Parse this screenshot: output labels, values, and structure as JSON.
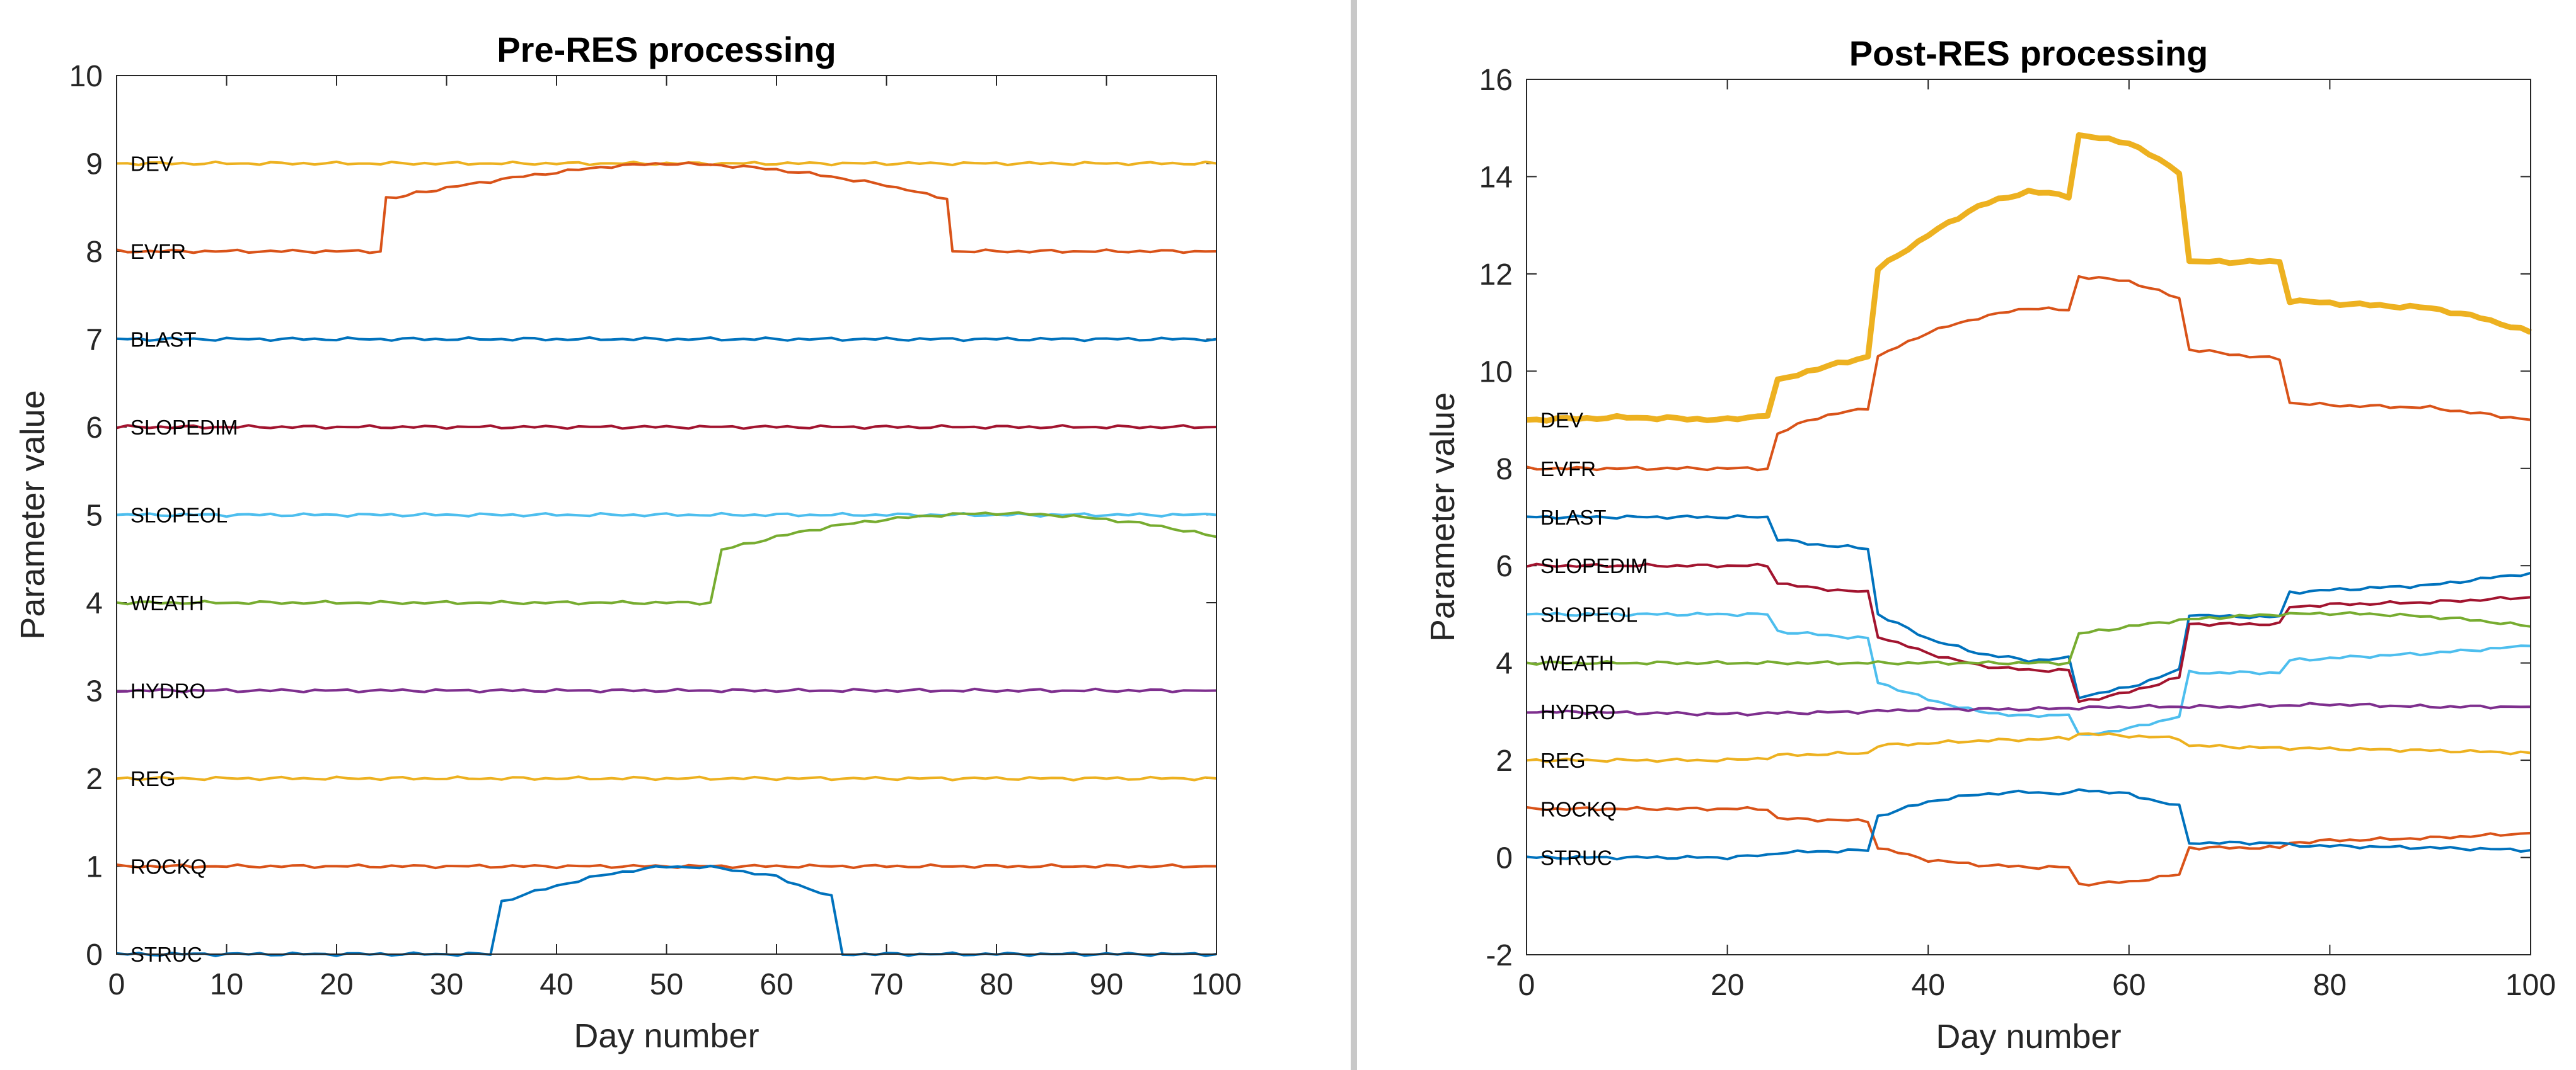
{
  "chart_data": [
    {
      "type": "line",
      "title": "Pre-RES processing",
      "xlabel": "Day number",
      "ylabel": "Parameter value",
      "xlim": [
        0,
        100
      ],
      "ylim": [
        0,
        10
      ],
      "xticks": [
        0,
        10,
        20,
        30,
        40,
        50,
        60,
        70,
        80,
        90,
        100
      ],
      "yticks": [
        0,
        1,
        2,
        3,
        4,
        5,
        6,
        7,
        8,
        9,
        10
      ],
      "grid": false,
      "series": [
        {
          "name": "DEV",
          "color": "#EDB120",
          "width": 2,
          "points": [
            [
              0,
              9
            ],
            [
              100,
              9
            ]
          ]
        },
        {
          "name": "EVFR",
          "color": "#D95319",
          "width": 2,
          "points": [
            [
              0,
              8.0
            ],
            [
              24,
              8.0
            ],
            [
              24.5,
              8.6
            ],
            [
              30,
              8.72
            ],
            [
              35,
              8.82
            ],
            [
              40,
              8.9
            ],
            [
              45,
              8.97
            ],
            [
              50,
              9.0
            ],
            [
              55,
              8.98
            ],
            [
              60,
              8.93
            ],
            [
              65,
              8.85
            ],
            [
              70,
              8.75
            ],
            [
              75.5,
              8.6
            ],
            [
              76,
              8.0
            ],
            [
              100,
              8.0
            ]
          ]
        },
        {
          "name": "BLAST",
          "color": "#0072BD",
          "width": 2,
          "points": [
            [
              0,
              7.0
            ],
            [
              100,
              7.0
            ]
          ]
        },
        {
          "name": "SLOPEDIM",
          "color": "#A2142F",
          "width": 2,
          "points": [
            [
              0,
              6.0
            ],
            [
              100,
              6.0
            ]
          ]
        },
        {
          "name": "SLOPEOL",
          "color": "#4DBEEE",
          "width": 2,
          "points": [
            [
              0,
              5.0
            ],
            [
              100,
              5.0
            ]
          ]
        },
        {
          "name": "WEATH",
          "color": "#77AC30",
          "width": 2,
          "points": [
            [
              0,
              4.0
            ],
            [
              54,
              4.0
            ],
            [
              55,
              4.6
            ],
            [
              60,
              4.75
            ],
            [
              65,
              4.87
            ],
            [
              70,
              4.95
            ],
            [
              75,
              5.0
            ],
            [
              80,
              5.02
            ],
            [
              85,
              5.0
            ],
            [
              90,
              4.95
            ],
            [
              95,
              4.87
            ],
            [
              100,
              4.75
            ]
          ]
        },
        {
          "name": "HYDRO",
          "color": "#7E2F8E",
          "width": 2,
          "points": [
            [
              0,
              3.0
            ],
            [
              100,
              3.0
            ]
          ]
        },
        {
          "name": "REG",
          "color": "#EDB120",
          "width": 2,
          "points": [
            [
              0,
              2.0
            ],
            [
              100,
              2.0
            ]
          ]
        },
        {
          "name": "ROCKQ",
          "color": "#D95319",
          "width": 2,
          "points": [
            [
              0,
              1.0
            ],
            [
              100,
              1.0
            ]
          ]
        },
        {
          "name": "STRUC",
          "color": "#0072BD",
          "width": 2,
          "points": [
            [
              0,
              0.0
            ],
            [
              34,
              0.0
            ],
            [
              35,
              0.6
            ],
            [
              40,
              0.78
            ],
            [
              45,
              0.92
            ],
            [
              50,
              1.0
            ],
            [
              55,
              0.98
            ],
            [
              60,
              0.88
            ],
            [
              65,
              0.65
            ],
            [
              66,
              0.0
            ],
            [
              100,
              0.0
            ]
          ]
        }
      ]
    },
    {
      "type": "line",
      "title": "Post-RES processing",
      "xlabel": "Day number",
      "ylabel": "Parameter value",
      "xlim": [
        0,
        100
      ],
      "ylim": [
        -2,
        16
      ],
      "xticks": [
        0,
        20,
        40,
        60,
        80,
        100
      ],
      "yticks": [
        -2,
        0,
        2,
        4,
        6,
        8,
        10,
        12,
        14,
        16
      ],
      "grid": false,
      "series": [
        {
          "name": "DEV",
          "color": "#EDB120",
          "width": 4.5,
          "points": [
            [
              0,
              9.0
            ],
            [
              10,
              9.05
            ],
            [
              20,
              9.0
            ],
            [
              24,
              9.1
            ],
            [
              25,
              9.8
            ],
            [
              28,
              10.0
            ],
            [
              30,
              10.1
            ],
            [
              34,
              10.3
            ],
            [
              35,
              12.1
            ],
            [
              40,
              12.8
            ],
            [
              45,
              13.4
            ],
            [
              50,
              13.7
            ],
            [
              54,
              13.6
            ],
            [
              55,
              14.85
            ],
            [
              60,
              14.7
            ],
            [
              65,
              14.1
            ],
            [
              66,
              12.25
            ],
            [
              70,
              12.25
            ],
            [
              75,
              12.25
            ],
            [
              76,
              11.45
            ],
            [
              80,
              11.4
            ],
            [
              85,
              11.35
            ],
            [
              90,
              11.3
            ],
            [
              95,
              11.1
            ],
            [
              100,
              10.8
            ]
          ]
        },
        {
          "name": "EVFR",
          "color": "#D95319",
          "width": 2,
          "points": [
            [
              0,
              8.0
            ],
            [
              24,
              8.0
            ],
            [
              25,
              8.7
            ],
            [
              28,
              9.0
            ],
            [
              34,
              9.25
            ],
            [
              35,
              10.3
            ],
            [
              40,
              10.8
            ],
            [
              45,
              11.1
            ],
            [
              50,
              11.3
            ],
            [
              54,
              11.25
            ],
            [
              55,
              11.95
            ],
            [
              60,
              11.85
            ],
            [
              65,
              11.5
            ],
            [
              66,
              10.45
            ],
            [
              70,
              10.35
            ],
            [
              75,
              10.25
            ],
            [
              76,
              9.35
            ],
            [
              80,
              9.3
            ],
            [
              90,
              9.25
            ],
            [
              100,
              9.0
            ]
          ]
        },
        {
          "name": "BLAST",
          "color": "#0072BD",
          "width": 2,
          "points": [
            [
              0,
              7.0
            ],
            [
              24,
              7.0
            ],
            [
              25,
              6.55
            ],
            [
              28,
              6.45
            ],
            [
              34,
              6.35
            ],
            [
              35,
              5.0
            ],
            [
              40,
              4.5
            ],
            [
              45,
              4.2
            ],
            [
              50,
              4.05
            ],
            [
              54,
              4.1
            ],
            [
              55,
              3.3
            ],
            [
              60,
              3.5
            ],
            [
              65,
              3.85
            ],
            [
              66,
              5.0
            ],
            [
              70,
              4.95
            ],
            [
              75,
              4.95
            ],
            [
              76,
              5.45
            ],
            [
              80,
              5.5
            ],
            [
              90,
              5.6
            ],
            [
              100,
              5.85
            ]
          ]
        },
        {
          "name": "SLOPEDIM",
          "color": "#A2142F",
          "width": 2,
          "points": [
            [
              0,
              6.0
            ],
            [
              24,
              6.0
            ],
            [
              25,
              5.65
            ],
            [
              28,
              5.55
            ],
            [
              34,
              5.45
            ],
            [
              35,
              4.55
            ],
            [
              40,
              4.2
            ],
            [
              45,
              3.95
            ],
            [
              50,
              3.85
            ],
            [
              54,
              3.85
            ],
            [
              55,
              3.2
            ],
            [
              60,
              3.4
            ],
            [
              65,
              3.7
            ],
            [
              66,
              4.8
            ],
            [
              70,
              4.8
            ],
            [
              75,
              4.8
            ],
            [
              76,
              5.15
            ],
            [
              80,
              5.2
            ],
            [
              90,
              5.25
            ],
            [
              100,
              5.35
            ]
          ]
        },
        {
          "name": "SLOPEOL",
          "color": "#4DBEEE",
          "width": 2,
          "points": [
            [
              0,
              5.0
            ],
            [
              24,
              5.0
            ],
            [
              25,
              4.65
            ],
            [
              28,
              4.6
            ],
            [
              34,
              4.5
            ],
            [
              35,
              3.6
            ],
            [
              40,
              3.25
            ],
            [
              45,
              3.0
            ],
            [
              50,
              2.9
            ],
            [
              54,
              2.95
            ],
            [
              55,
              2.5
            ],
            [
              60,
              2.65
            ],
            [
              65,
              2.9
            ],
            [
              66,
              3.8
            ],
            [
              70,
              3.8
            ],
            [
              75,
              3.8
            ],
            [
              76,
              4.05
            ],
            [
              80,
              4.1
            ],
            [
              90,
              4.2
            ],
            [
              100,
              4.35
            ]
          ]
        },
        {
          "name": "WEATH",
          "color": "#77AC30",
          "width": 2,
          "points": [
            [
              0,
              4.0
            ],
            [
              54,
              4.0
            ],
            [
              55,
              4.6
            ],
            [
              60,
              4.75
            ],
            [
              65,
              4.88
            ],
            [
              70,
              4.95
            ],
            [
              75,
              5.0
            ],
            [
              80,
              5.02
            ],
            [
              85,
              5.0
            ],
            [
              90,
              4.95
            ],
            [
              95,
              4.87
            ],
            [
              100,
              4.75
            ]
          ]
        },
        {
          "name": "HYDRO",
          "color": "#7E2F8E",
          "width": 2,
          "points": [
            [
              0,
              3.0
            ],
            [
              20,
              2.95
            ],
            [
              34,
              3.0
            ],
            [
              40,
              3.05
            ],
            [
              50,
              3.05
            ],
            [
              60,
              3.1
            ],
            [
              70,
              3.1
            ],
            [
              80,
              3.15
            ],
            [
              90,
              3.1
            ],
            [
              100,
              3.1
            ]
          ]
        },
        {
          "name": "REG",
          "color": "#EDB120",
          "width": 2,
          "points": [
            [
              0,
              2.0
            ],
            [
              20,
              2.0
            ],
            [
              24,
              2.05
            ],
            [
              25,
              2.1
            ],
            [
              34,
              2.15
            ],
            [
              35,
              2.3
            ],
            [
              45,
              2.4
            ],
            [
              54,
              2.45
            ],
            [
              55,
              2.55
            ],
            [
              60,
              2.5
            ],
            [
              65,
              2.45
            ],
            [
              66,
              2.3
            ],
            [
              75,
              2.25
            ],
            [
              76,
              2.25
            ],
            [
              90,
              2.2
            ],
            [
              100,
              2.15
            ]
          ]
        },
        {
          "name": "ROCKQ",
          "color": "#D95319",
          "width": 2,
          "points": [
            [
              0,
              1.0
            ],
            [
              24,
              1.0
            ],
            [
              25,
              0.8
            ],
            [
              34,
              0.75
            ],
            [
              35,
              0.2
            ],
            [
              40,
              -0.05
            ],
            [
              45,
              -0.15
            ],
            [
              50,
              -0.2
            ],
            [
              54,
              -0.2
            ],
            [
              55,
              -0.55
            ],
            [
              60,
              -0.5
            ],
            [
              65,
              -0.35
            ],
            [
              66,
              0.2
            ],
            [
              75,
              0.2
            ],
            [
              76,
              0.3
            ],
            [
              80,
              0.35
            ],
            [
              90,
              0.4
            ],
            [
              100,
              0.5
            ]
          ]
        },
        {
          "name": "STRUC",
          "color": "#0072BD",
          "width": 2,
          "points": [
            [
              0,
              0.0
            ],
            [
              20,
              0.0
            ],
            [
              24,
              0.05
            ],
            [
              25,
              0.1
            ],
            [
              34,
              0.15
            ],
            [
              35,
              0.85
            ],
            [
              40,
              1.15
            ],
            [
              45,
              1.3
            ],
            [
              50,
              1.35
            ],
            [
              54,
              1.3
            ],
            [
              55,
              1.4
            ],
            [
              60,
              1.3
            ],
            [
              65,
              1.05
            ],
            [
              66,
              0.3
            ],
            [
              70,
              0.3
            ],
            [
              75,
              0.3
            ],
            [
              76,
              0.25
            ],
            [
              90,
              0.2
            ],
            [
              100,
              0.15
            ]
          ]
        }
      ]
    }
  ]
}
